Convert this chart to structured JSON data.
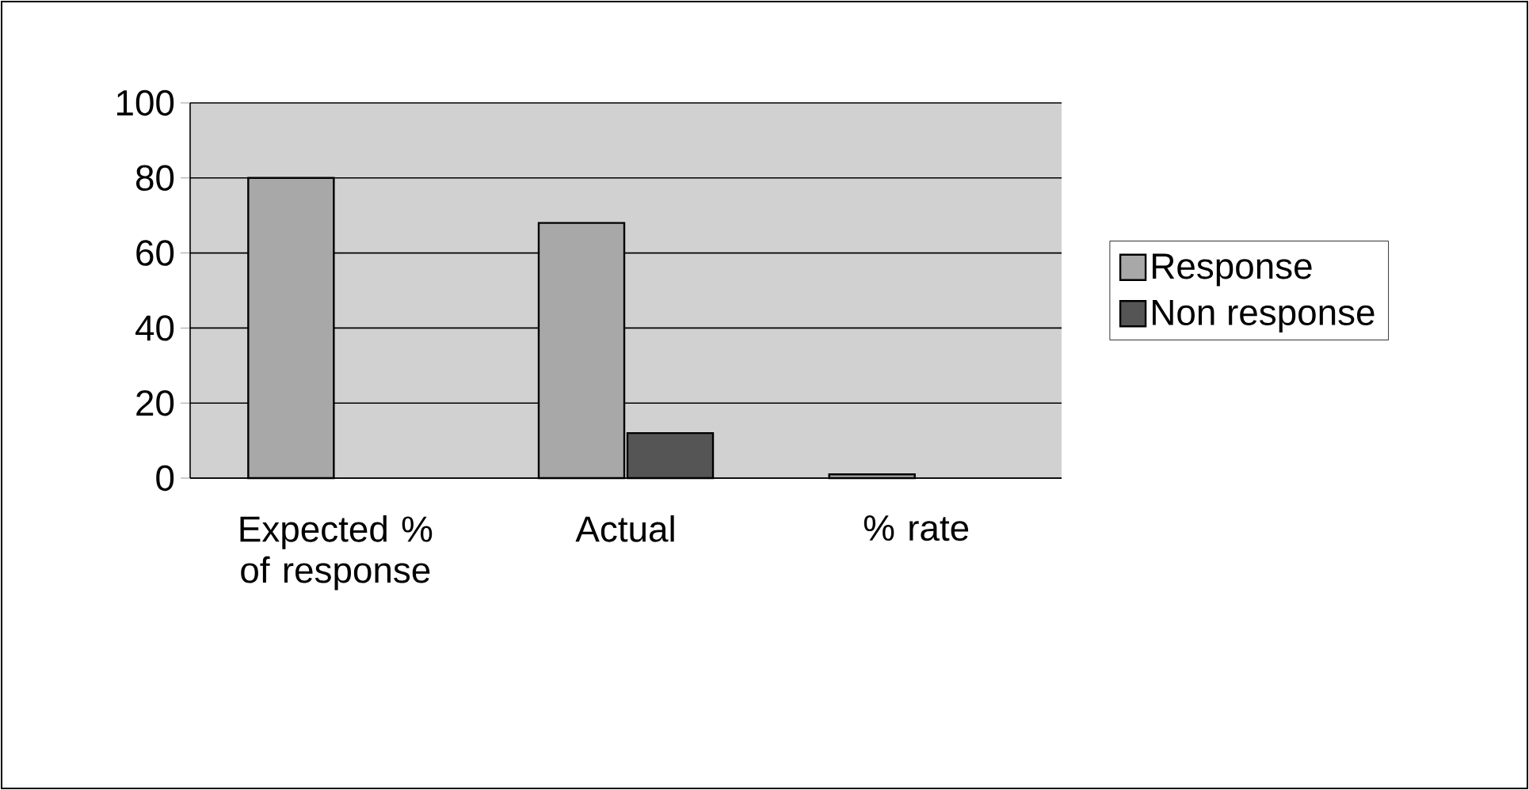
{
  "chart_data": {
    "type": "bar",
    "categories": [
      "Expected % of response",
      "Actual",
      "% rate"
    ],
    "series": [
      {
        "name": "Response",
        "color": "#a8a8a8",
        "values": [
          80,
          68,
          1
        ]
      },
      {
        "name": "Non response",
        "color": "#555555",
        "values": [
          null,
          12,
          null
        ]
      }
    ],
    "ylim": [
      0,
      100
    ],
    "yticks": [
      0,
      20,
      40,
      60,
      80,
      100
    ],
    "grid": "y",
    "legend": "right"
  }
}
